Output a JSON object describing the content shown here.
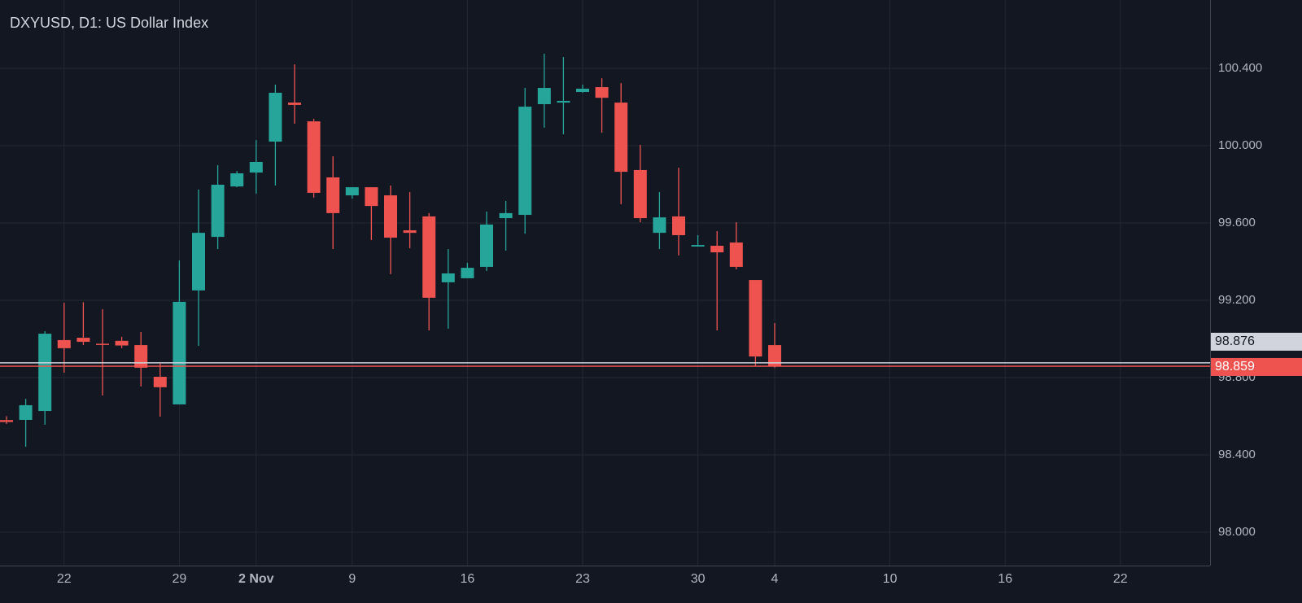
{
  "chart_data": {
    "type": "candlestick",
    "title": "DXYUSD, D1: US Dollar Index",
    "categories": [
      null,
      null,
      null,
      "22",
      null,
      null,
      null,
      null,
      null,
      "29",
      null,
      null,
      null,
      "2 Nov",
      null,
      null,
      null,
      null,
      "9",
      null,
      null,
      null,
      null,
      null,
      "16",
      null,
      null,
      null,
      null,
      null,
      "23",
      null,
      null,
      null,
      null,
      null,
      "30",
      null,
      null,
      null,
      "4",
      null,
      null,
      null,
      null,
      null,
      "10",
      null,
      null,
      null,
      null,
      null,
      "16",
      null,
      null,
      null,
      null,
      null,
      "22",
      null,
      null,
      null,
      null
    ],
    "open": [
      98.58,
      98.581,
      98.627,
      98.994,
      99.006,
      98.975,
      98.99,
      98.968,
      98.804,
      98.661,
      99.251,
      99.528,
      99.789,
      99.861,
      100.021,
      100.223,
      100.126,
      99.836,
      99.743,
      99.785,
      99.743,
      99.562,
      99.634,
      99.293,
      99.314,
      99.373,
      99.625,
      99.642,
      100.215,
      100.223,
      100.278,
      100.303,
      100.223,
      99.874,
      99.549,
      99.634,
      99.478,
      99.482,
      99.499,
      99.305,
      98.968,
      null,
      null,
      null,
      null,
      null,
      null,
      null,
      null,
      null,
      null,
      null,
      null,
      null,
      null,
      null,
      null,
      null,
      null,
      null,
      null,
      null,
      null
    ],
    "high": [
      98.6,
      98.69,
      99.04,
      99.187,
      99.19,
      99.154,
      99.011,
      99.036,
      98.872,
      99.406,
      99.773,
      99.899,
      99.869,
      100.029,
      100.316,
      100.421,
      100.139,
      99.945,
      99.785,
      99.785,
      99.794,
      99.76,
      99.651,
      99.465,
      99.394,
      99.659,
      99.714,
      100.299,
      100.476,
      100.459,
      100.316,
      100.349,
      100.324,
      100.004,
      99.76,
      99.886,
      99.537,
      99.558,
      99.604,
      99.305,
      99.082,
      null,
      null,
      null,
      null,
      null,
      null,
      null,
      null,
      null,
      null,
      null,
      null,
      null,
      null,
      null,
      null,
      null,
      null,
      null,
      null,
      null,
      null
    ],
    "low": [
      98.56,
      98.442,
      98.556,
      98.825,
      98.968,
      98.707,
      98.952,
      98.754,
      98.598,
      98.661,
      98.964,
      99.465,
      99.785,
      99.752,
      99.794,
      100.114,
      99.731,
      99.465,
      99.726,
      99.512,
      99.335,
      99.469,
      99.044,
      99.053,
      99.314,
      99.352,
      99.457,
      99.545,
      100.093,
      100.059,
      100.274,
      100.067,
      99.697,
      99.604,
      99.465,
      99.432,
      99.478,
      99.044,
      99.36,
      98.859,
      98.851,
      null,
      null,
      null,
      null,
      null,
      null,
      null,
      null,
      null,
      null,
      null,
      null,
      null,
      null,
      null,
      null,
      null,
      null,
      null,
      null,
      null,
      null
    ],
    "close": [
      98.57,
      98.657,
      99.027,
      98.952,
      98.985,
      98.97,
      98.966,
      98.851,
      98.75,
      99.192,
      99.549,
      99.798,
      99.857,
      99.916,
      100.274,
      100.211,
      99.756,
      99.651,
      99.785,
      99.688,
      99.524,
      99.549,
      99.213,
      99.339,
      99.368,
      99.592,
      99.651,
      100.202,
      100.299,
      100.232,
      100.295,
      100.248,
      99.865,
      99.625,
      99.629,
      99.537,
      99.486,
      99.448,
      99.373,
      98.909,
      98.859,
      null,
      null,
      null,
      null,
      null,
      null,
      null,
      null,
      null,
      null,
      null,
      null,
      null,
      null,
      null,
      null,
      null,
      null,
      null,
      null,
      null,
      null
    ],
    "up_color": "#26a69a",
    "down_color": "#ef5350",
    "ylim": [
      97.827,
      100.754
    ],
    "yticks": [
      {
        "value": 98.0,
        "label": "98.000"
      },
      {
        "value": 98.4,
        "label": "98.400"
      },
      {
        "value": 98.8,
        "label": "98.800"
      },
      {
        "value": 99.2,
        "label": "99.200"
      },
      {
        "value": 99.6,
        "label": "99.600"
      },
      {
        "value": 100.0,
        "label": "100.000"
      },
      {
        "value": 100.4,
        "label": "100.400"
      }
    ],
    "price_lines": [
      {
        "value": 98.876,
        "color": "#d1d4dc"
      },
      {
        "value": 98.859,
        "color": "#ef5350"
      }
    ],
    "grid": true
  }
}
